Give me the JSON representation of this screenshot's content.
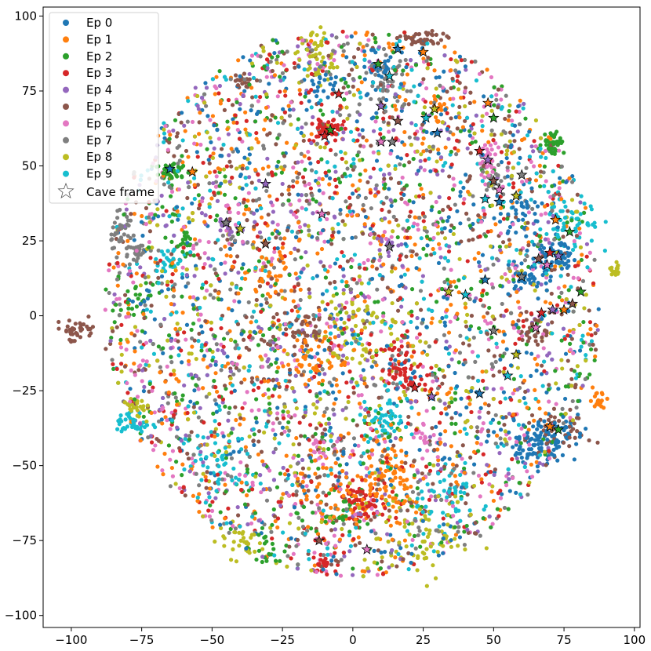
{
  "chart_data": {
    "type": "scatter",
    "title": "",
    "xlabel": "",
    "ylabel": "",
    "xlim": [
      -110,
      102
    ],
    "ylim": [
      -104,
      103
    ],
    "xticks": [
      -100,
      -75,
      -50,
      -25,
      0,
      25,
      50,
      75,
      100
    ],
    "yticks": [
      -100,
      -75,
      -50,
      -25,
      0,
      25,
      50,
      75,
      100
    ],
    "xtick_labels": [
      "−100",
      "−75",
      "−50",
      "−25",
      "0",
      "25",
      "50",
      "75",
      "100"
    ],
    "ytick_labels": [
      "−100",
      "−75",
      "−50",
      "−25",
      "0",
      "25",
      "50",
      "75",
      "100"
    ],
    "grid": false,
    "legend_position": "top-left",
    "series": [
      {
        "name": "Ep 0",
        "color": "#1f77b4",
        "clusters": [
          [
            68,
            -40,
            6,
            3,
            90
          ],
          [
            65,
            -46,
            4,
            1.5,
            30
          ],
          [
            72,
            20,
            3,
            3,
            60
          ],
          [
            62,
            12,
            4,
            3,
            40
          ],
          [
            8,
            83,
            4,
            3,
            30
          ],
          [
            -10,
            78,
            3,
            3,
            20
          ],
          [
            60,
            35,
            6,
            6,
            40
          ]
        ]
      },
      {
        "name": "Ep 1",
        "color": "#ff7f0e",
        "clusters": [
          [
            13,
            -52,
            4,
            6,
            80
          ],
          [
            -15,
            -15,
            8,
            6,
            60
          ],
          [
            87,
            -28,
            1.5,
            1.5,
            20
          ],
          [
            -5,
            -60,
            8,
            8,
            60
          ],
          [
            30,
            70,
            2,
            2,
            20
          ],
          [
            -30,
            15,
            6,
            6,
            40
          ]
        ]
      },
      {
        "name": "Ep 2",
        "color": "#2ca02c",
        "clusters": [
          [
            -64,
            48,
            3,
            2,
            40
          ],
          [
            71,
            58,
            2,
            2,
            40
          ],
          [
            -60,
            25,
            2,
            3,
            20
          ],
          [
            -75,
            5,
            3,
            3,
            20
          ],
          [
            -5,
            -65,
            6,
            4,
            30
          ],
          [
            -30,
            -78,
            4,
            3,
            20
          ]
        ]
      },
      {
        "name": "Ep 3",
        "color": "#d62728",
        "clusters": [
          [
            -9,
            62,
            3,
            2,
            60
          ],
          [
            3,
            -62,
            4,
            3,
            60
          ],
          [
            -10,
            -83,
            3,
            1.5,
            20
          ],
          [
            22,
            -22,
            4,
            3,
            30
          ],
          [
            15,
            -15,
            4,
            4,
            30
          ]
        ]
      },
      {
        "name": "Ep 4",
        "color": "#9467bd",
        "clusters": [
          [
            -45,
            31,
            1.5,
            1.5,
            15
          ],
          [
            12,
            24,
            2,
            2,
            15
          ]
        ]
      },
      {
        "name": "Ep 5",
        "color": "#8c564b",
        "clusters": [
          [
            25,
            92,
            4,
            1.5,
            40
          ],
          [
            -98,
            -5,
            4,
            2,
            40
          ],
          [
            -40,
            78,
            2,
            1.5,
            15
          ],
          [
            65,
            -5,
            3,
            3,
            30
          ],
          [
            75,
            -38,
            5,
            3,
            40
          ],
          [
            -20,
            -5,
            6,
            6,
            50
          ]
        ]
      },
      {
        "name": "Ep 6",
        "color": "#e377c2",
        "clusters": [
          [
            48,
            52,
            1.5,
            3,
            30
          ],
          [
            -12,
            -45,
            2,
            2,
            15
          ],
          [
            25,
            -40,
            2,
            2,
            15
          ]
        ]
      },
      {
        "name": "Ep 7",
        "color": "#7f7f7f",
        "clusters": [
          [
            -83,
            27,
            2,
            4,
            40
          ],
          [
            -76,
            22,
            2,
            2,
            25
          ],
          [
            12,
            78,
            3,
            4,
            40
          ],
          [
            50,
            45,
            3,
            3,
            25
          ]
        ]
      },
      {
        "name": "Ep 8",
        "color": "#bcbd22",
        "clusters": [
          [
            -13,
            86,
            3,
            5,
            50
          ],
          [
            -77,
            -30,
            2,
            1.5,
            20
          ],
          [
            25,
            -75,
            8,
            6,
            60
          ],
          [
            0,
            -5,
            8,
            8,
            60
          ],
          [
            -40,
            -75,
            4,
            3,
            30
          ],
          [
            93,
            15,
            1.5,
            1.5,
            15
          ]
        ]
      },
      {
        "name": "Ep 9",
        "color": "#17becf",
        "clusters": [
          [
            -78,
            -36,
            3,
            2,
            40
          ],
          [
            10,
            -35,
            4,
            3,
            40
          ],
          [
            78,
            30,
            5,
            6,
            50
          ],
          [
            -65,
            18,
            3,
            3,
            30
          ],
          [
            35,
            -60,
            6,
            4,
            40
          ],
          [
            -45,
            -50,
            6,
            6,
            40
          ]
        ]
      }
    ],
    "star_markers": {
      "name": "Cave frame",
      "points": [
        [
          -65,
          49
        ],
        [
          -57,
          48
        ],
        [
          -8,
          62
        ],
        [
          -10,
          60
        ],
        [
          -31,
          44
        ],
        [
          -31,
          24
        ],
        [
          -11,
          34
        ],
        [
          -45,
          31
        ],
        [
          -40,
          29
        ],
        [
          13,
          80
        ],
        [
          16,
          89
        ],
        [
          25,
          88
        ],
        [
          9,
          84
        ],
        [
          -5,
          74
        ],
        [
          10,
          70
        ],
        [
          16,
          65
        ],
        [
          10,
          58
        ],
        [
          14,
          58
        ],
        [
          29,
          69
        ],
        [
          26,
          66
        ],
        [
          30,
          61
        ],
        [
          48,
          71
        ],
        [
          50,
          66
        ],
        [
          45,
          55
        ],
        [
          48,
          52
        ],
        [
          50,
          45
        ],
        [
          52,
          42
        ],
        [
          60,
          47
        ],
        [
          58,
          40
        ],
        [
          47,
          39
        ],
        [
          52,
          38
        ],
        [
          72,
          32
        ],
        [
          77,
          28
        ],
        [
          70,
          21
        ],
        [
          73,
          20
        ],
        [
          66,
          19
        ],
        [
          69,
          17
        ],
        [
          60,
          13
        ],
        [
          34,
          8
        ],
        [
          40,
          7
        ],
        [
          47,
          12
        ],
        [
          75,
          2
        ],
        [
          81,
          8
        ],
        [
          67,
          1
        ],
        [
          71,
          2
        ],
        [
          78,
          4
        ],
        [
          65,
          -4
        ],
        [
          50,
          -5
        ],
        [
          58,
          -13
        ],
        [
          55,
          -20
        ],
        [
          45,
          -26
        ],
        [
          70,
          -37
        ],
        [
          73,
          -38
        ],
        [
          22,
          -24
        ],
        [
          28,
          -27
        ],
        [
          -12,
          -75
        ],
        [
          5,
          -78
        ],
        [
          13,
          23
        ]
      ]
    }
  },
  "legend": {
    "items": [
      {
        "label": "Ep 0",
        "color": "#1f77b4"
      },
      {
        "label": "Ep 1",
        "color": "#ff7f0e"
      },
      {
        "label": "Ep 2",
        "color": "#2ca02c"
      },
      {
        "label": "Ep 3",
        "color": "#d62728"
      },
      {
        "label": "Ep 4",
        "color": "#9467bd"
      },
      {
        "label": "Ep 5",
        "color": "#8c564b"
      },
      {
        "label": "Ep 6",
        "color": "#e377c2"
      },
      {
        "label": "Ep 7",
        "color": "#7f7f7f"
      },
      {
        "label": "Ep 8",
        "color": "#bcbd22"
      },
      {
        "label": "Ep 9",
        "color": "#17becf"
      }
    ],
    "star_label": "Cave frame"
  }
}
